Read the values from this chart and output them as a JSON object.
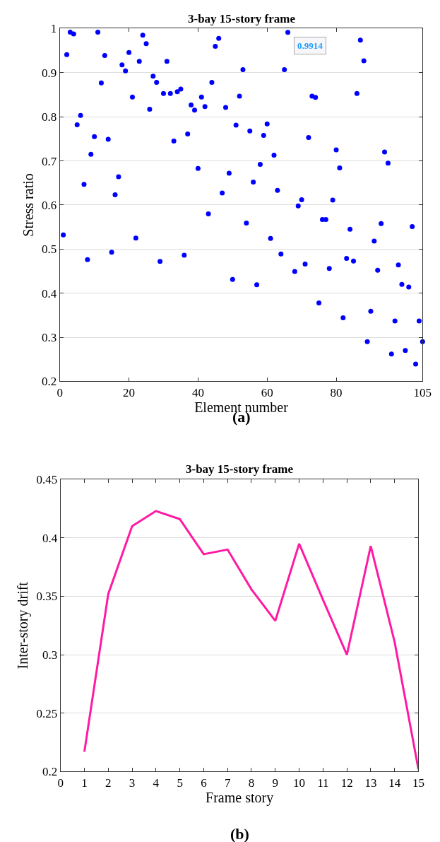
{
  "chart_data": [
    {
      "type": "scatter",
      "title": "3-bay 15-story frame",
      "xlabel": "Element number",
      "ylabel": "Stress ratio",
      "x": [
        1,
        2,
        3,
        4,
        5,
        6,
        7,
        8,
        9,
        10,
        11,
        12,
        13,
        14,
        15,
        16,
        17,
        18,
        19,
        20,
        21,
        22,
        23,
        24,
        25,
        26,
        27,
        28,
        29,
        30,
        31,
        32,
        33,
        34,
        35,
        36,
        37,
        38,
        39,
        40,
        41,
        42,
        43,
        44,
        45,
        46,
        47,
        48,
        49,
        50,
        51,
        52,
        53,
        54,
        55,
        56,
        57,
        58,
        59,
        60,
        61,
        62,
        63,
        64,
        65,
        66,
        67,
        68,
        69,
        70,
        71,
        72,
        73,
        74,
        75,
        76,
        77,
        78,
        79,
        80,
        81,
        82,
        83,
        84,
        85,
        86,
        87,
        88,
        89,
        90,
        91,
        92,
        93,
        94,
        95,
        96,
        97,
        98,
        99,
        100,
        101,
        102,
        103,
        104,
        105
      ],
      "series": [
        {
          "color": "#0000ff",
          "values": [
            0.532,
            0.941,
            0.992,
            0.988,
            0.782,
            0.803,
            0.647,
            0.476,
            0.715,
            0.755,
            0.992,
            0.877,
            0.939,
            0.749,
            0.493,
            0.623,
            0.664,
            0.918,
            0.904,
            0.946,
            0.845,
            0.525,
            0.926,
            0.985,
            0.966,
            0.817,
            0.892,
            0.878,
            0.472,
            0.853,
            0.926,
            0.853,
            0.745,
            0.857,
            0.863,
            0.486,
            0.761,
            0.827,
            0.815,
            0.683,
            0.845,
            0.823,
            0.58,
            0.878,
            0.96,
            0.978,
            0.627,
            0.821,
            0.672,
            0.431,
            0.781,
            0.847,
            0.907,
            0.559,
            0.768,
            0.652,
            0.419,
            0.692,
            0.758,
            0.784,
            0.524,
            0.713,
            0.633,
            0.489,
            0.907,
            0.9914,
            null,
            0.449,
            0.598,
            0.612,
            0.466,
            0.753,
            0.847,
            0.844,
            0.378,
            0.567,
            0.567,
            0.456,
            0.611,
            0.725,
            0.684,
            0.344,
            0.479,
            0.545,
            0.473,
            0.853,
            0.974,
            0.927,
            0.29,
            0.359,
            0.518,
            0.452,
            0.558,
            0.72,
            0.695,
            0.262,
            0.337,
            0.464,
            0.42,
            0.27,
            0.414,
            0.551,
            0.239,
            0.337,
            0.29
          ]
        }
      ],
      "xlim": [
        0,
        105
      ],
      "xticks": [
        0,
        20,
        40,
        60,
        80,
        105
      ],
      "ylim": [
        0.2,
        1
      ],
      "yticks": [
        0.2,
        0.3,
        0.4,
        0.5,
        0.6,
        0.7,
        0.8,
        0.9,
        1
      ],
      "grid": "y",
      "marker": "circle",
      "annotations": [
        {
          "text": "0.9914",
          "x": 66,
          "y": 0.9914
        },
        "(a)"
      ]
    },
    {
      "type": "line",
      "title": "3-bay 15-story frame",
      "xlabel": "Frame story",
      "ylabel": "Inter-story drift",
      "x": [
        1,
        2,
        3,
        4,
        5,
        6,
        7,
        8,
        9,
        10,
        11,
        12,
        13,
        14,
        15
      ],
      "series": [
        {
          "color": "#ff1aa3",
          "values": [
            0.217,
            0.352,
            0.41,
            0.423,
            0.416,
            0.386,
            0.39,
            0.356,
            0.329,
            0.395,
            0.347,
            0.3,
            0.393,
            0.311,
            0.202
          ]
        }
      ],
      "xlim": [
        0,
        15
      ],
      "xticks": [
        0,
        1,
        2,
        3,
        4,
        5,
        6,
        7,
        8,
        9,
        10,
        11,
        12,
        13,
        14,
        15
      ],
      "ylim": [
        0.2,
        0.45
      ],
      "yticks": [
        0.2,
        0.25,
        0.3,
        0.35,
        0.4,
        0.45
      ],
      "grid": "y",
      "marker": "none",
      "line_style": "solid",
      "annotations": [
        "(b)"
      ]
    }
  ]
}
